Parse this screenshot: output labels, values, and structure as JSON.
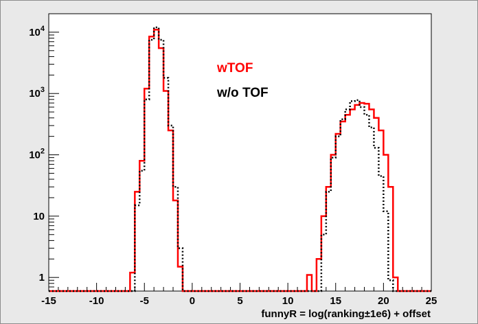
{
  "chart_data": {
    "type": "line",
    "title": "",
    "xlabel": "funnyR = log(ranking±1e6) + offset",
    "ylabel": "",
    "xlim": [
      -15,
      25
    ],
    "ylim": [
      0.6,
      20000
    ],
    "yscale": "log",
    "grid": false,
    "legend_placement": "top-center",
    "x_ticks": [
      -15,
      -10,
      -5,
      0,
      5,
      10,
      15,
      20,
      25
    ],
    "x_tick_labels": [
      "-15",
      "-10",
      "-5",
      "0",
      "5",
      "10",
      "15",
      "20",
      "25"
    ],
    "y_ticks": [
      1,
      10,
      100,
      1000,
      10000
    ],
    "y_tick_labels": [
      {
        "base": "1",
        "exp": ""
      },
      {
        "base": "10",
        "exp": ""
      },
      {
        "base": "10",
        "exp": "2"
      },
      {
        "base": "10",
        "exp": "3"
      },
      {
        "base": "10",
        "exp": "4"
      }
    ],
    "bin_width": 0.5,
    "series": [
      {
        "name": "wTOF",
        "color": "#ff0000",
        "style": "solid",
        "bins": [
          [
            -7.0,
            0.6
          ],
          [
            -6.5,
            1.2
          ],
          [
            -6.0,
            25
          ],
          [
            -5.5,
            80
          ],
          [
            -5.0,
            1200
          ],
          [
            -4.5,
            8500
          ],
          [
            -4.0,
            11000
          ],
          [
            -3.5,
            5500
          ],
          [
            -3.0,
            1100
          ],
          [
            -2.5,
            250
          ],
          [
            -2.0,
            18
          ],
          [
            -1.5,
            1.5
          ],
          [
            -1.0,
            0.6
          ],
          [
            12.0,
            1.1
          ],
          [
            12.5,
            0.6
          ],
          [
            13.0,
            2.0
          ],
          [
            13.5,
            10
          ],
          [
            14.0,
            30
          ],
          [
            14.5,
            100
          ],
          [
            15.0,
            220
          ],
          [
            15.5,
            350
          ],
          [
            16.0,
            450
          ],
          [
            16.5,
            550
          ],
          [
            17.0,
            650
          ],
          [
            17.5,
            700
          ],
          [
            18.0,
            680
          ],
          [
            18.5,
            550
          ],
          [
            19.0,
            400
          ],
          [
            19.5,
            250
          ],
          [
            20.0,
            100
          ],
          [
            20.5,
            30
          ],
          [
            21.0,
            1.0
          ],
          [
            21.5,
            0.6
          ]
        ]
      },
      {
        "name": "w/o TOF",
        "color": "#000000",
        "style": "dotted",
        "bins": [
          [
            -6.5,
            0.6
          ],
          [
            -6.0,
            15
          ],
          [
            -5.5,
            55
          ],
          [
            -5.0,
            800
          ],
          [
            -4.5,
            7500
          ],
          [
            -4.0,
            12000
          ],
          [
            -3.5,
            7500
          ],
          [
            -3.0,
            1800
          ],
          [
            -2.5,
            300
          ],
          [
            -2.0,
            30
          ],
          [
            -1.5,
            3
          ],
          [
            -1.0,
            0.6
          ],
          [
            13.5,
            5
          ],
          [
            14.0,
            25
          ],
          [
            14.5,
            90
          ],
          [
            15.0,
            200
          ],
          [
            15.5,
            380
          ],
          [
            16.0,
            550
          ],
          [
            16.5,
            750
          ],
          [
            17.0,
            780
          ],
          [
            17.5,
            600
          ],
          [
            18.0,
            450
          ],
          [
            18.5,
            280
          ],
          [
            19.0,
            130
          ],
          [
            19.5,
            45
          ],
          [
            20.0,
            12
          ],
          [
            20.5,
            0.9
          ],
          [
            21.0,
            0.6
          ]
        ]
      }
    ]
  },
  "legend": {
    "entries": [
      {
        "label": "wTOF",
        "color": "#ff0000"
      },
      {
        "label": "w/o TOF",
        "color": "#000000"
      }
    ]
  }
}
